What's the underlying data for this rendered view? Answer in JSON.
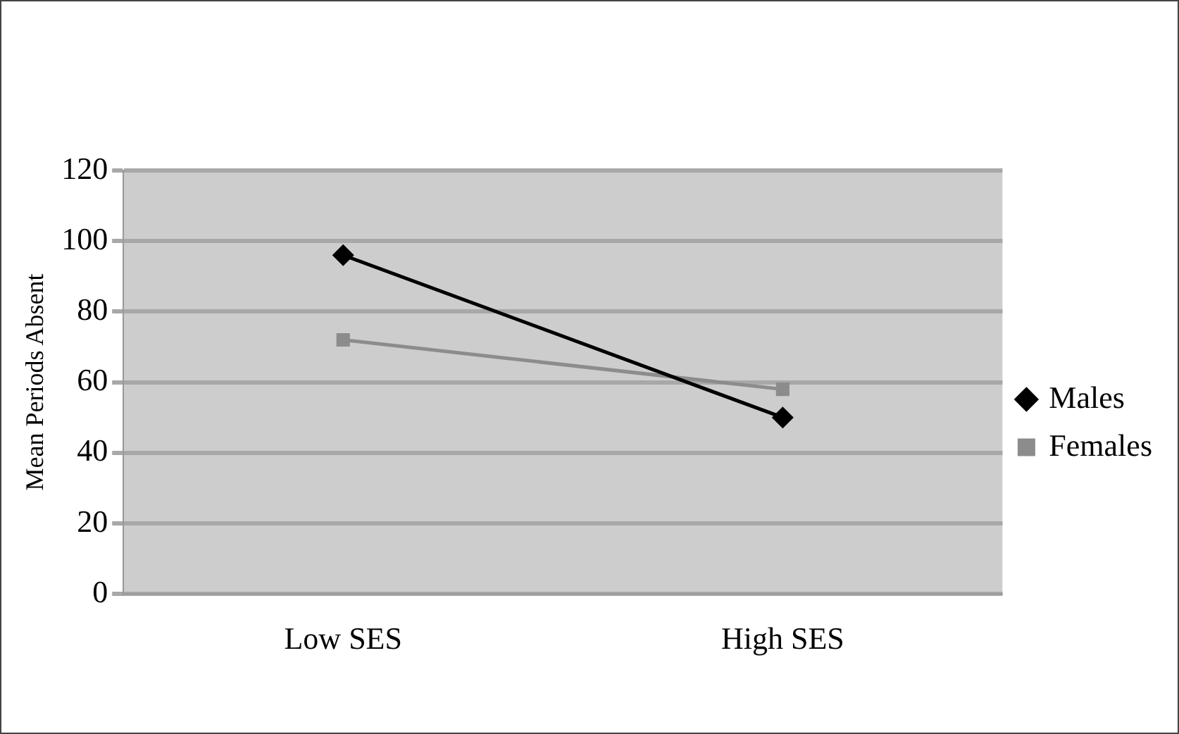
{
  "chart_data": {
    "type": "line",
    "ylabel": "Mean Periods Absent",
    "categories": [
      "Low SES",
      "High SES"
    ],
    "series": [
      {
        "name": "Males",
        "color": "#000000",
        "values": [
          96,
          50
        ],
        "marker": "diamond"
      },
      {
        "name": "Females",
        "color": "#8c8c8c",
        "values": [
          72,
          58
        ],
        "marker": "square"
      }
    ],
    "ylim": [
      0,
      120
    ],
    "yticks": [
      0,
      20,
      40,
      60,
      80,
      100,
      120
    ],
    "grid": "y",
    "legend": "right"
  }
}
